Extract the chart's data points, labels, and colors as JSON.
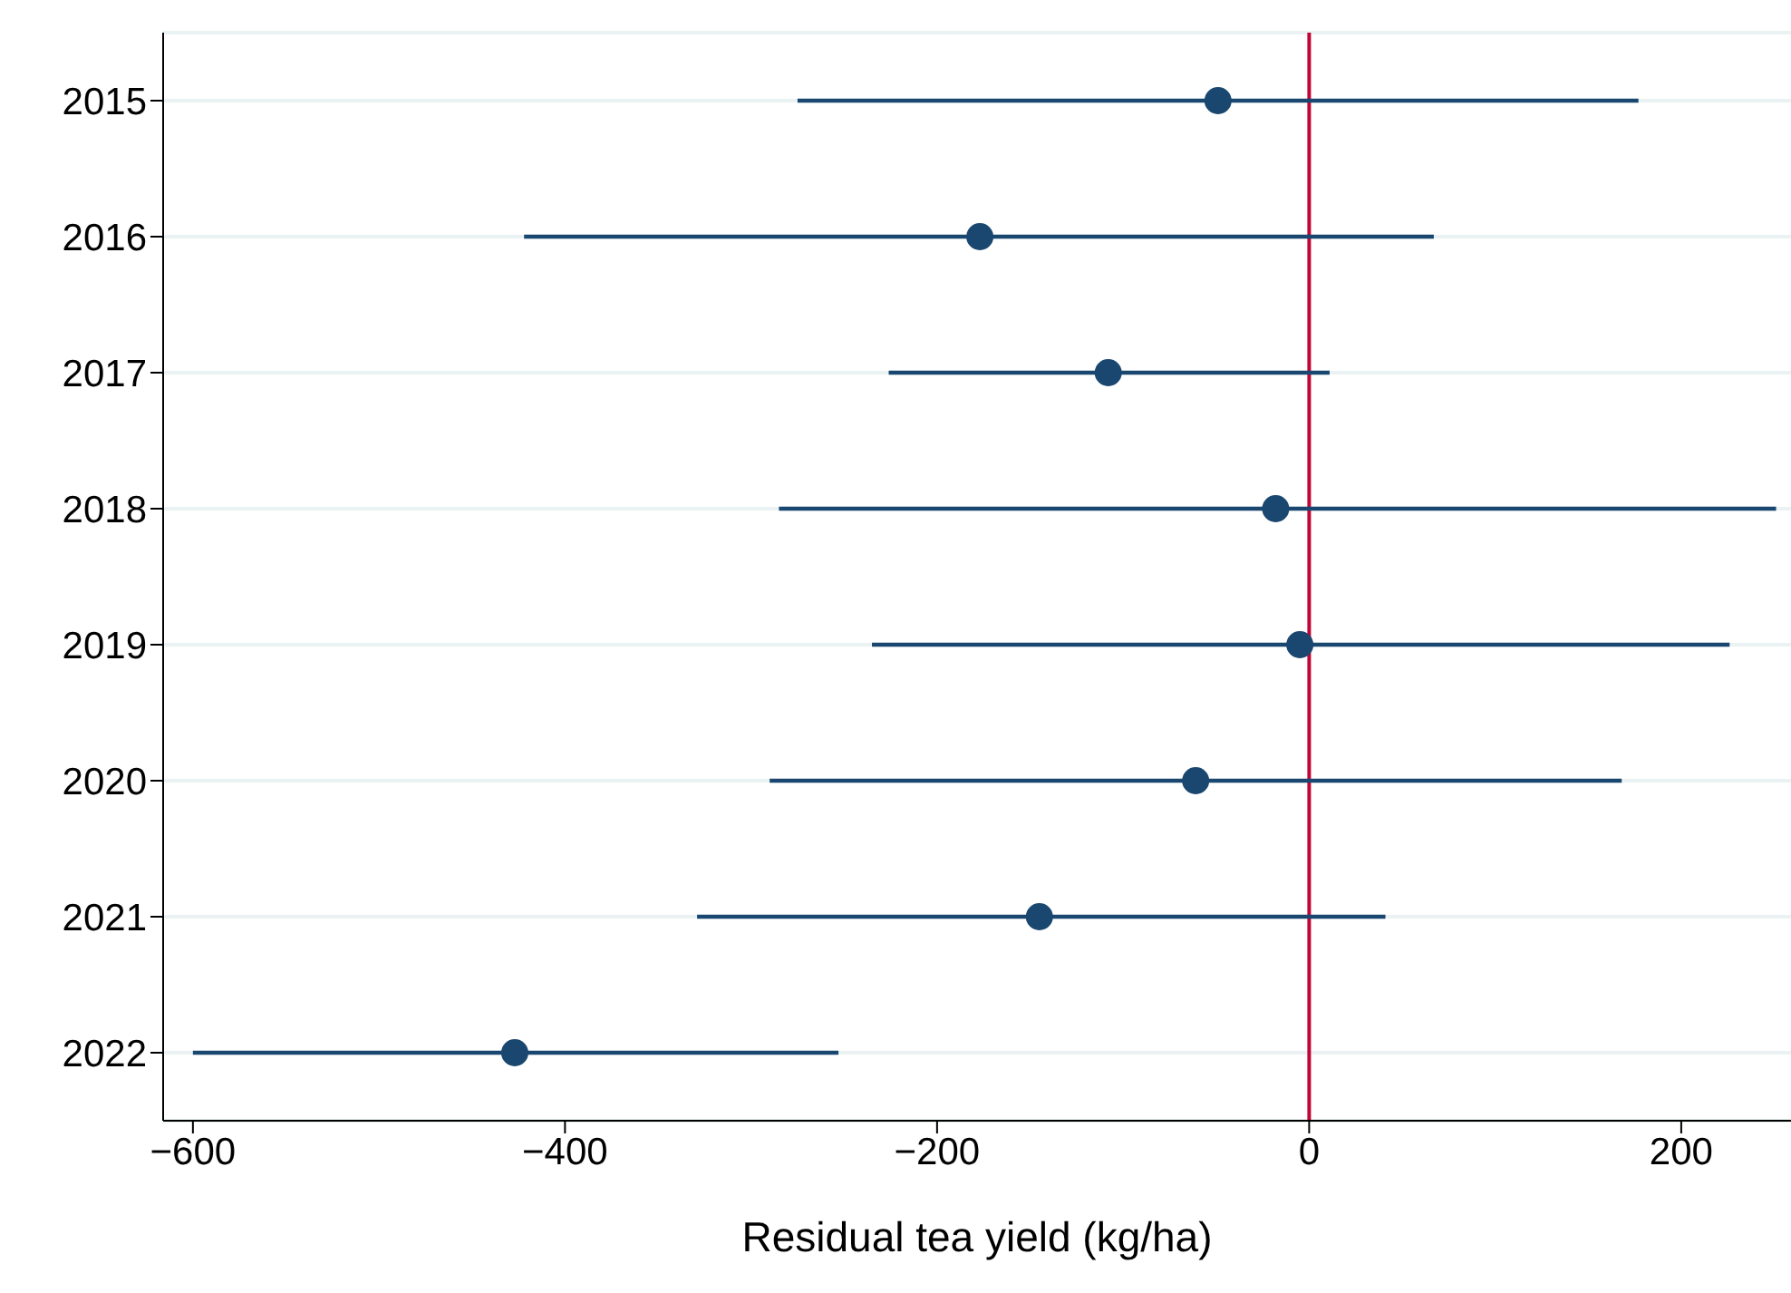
{
  "chart_data": {
    "type": "scatter",
    "orientation": "horizontal",
    "xlabel": "Residual tea yield (kg/ha)",
    "categories": [
      "2015",
      "2016",
      "2017",
      "2018",
      "2019",
      "2020",
      "2021",
      "2022"
    ],
    "values": [
      -49,
      -177,
      -108,
      -18,
      -5,
      -61,
      -145,
      -427
    ],
    "errors": [
      [
        -275,
        177
      ],
      [
        -422,
        67
      ],
      [
        -226,
        11
      ],
      [
        -285,
        251
      ],
      [
        -235,
        226
      ],
      [
        -290,
        168
      ],
      [
        -329,
        41
      ],
      [
        -600,
        -253
      ]
    ],
    "color": "#1a476f",
    "marker": "circle",
    "grid": "y",
    "xlim": [
      -616,
      259
    ],
    "xticks": [
      {
        "value": -600,
        "label": "−600"
      },
      {
        "value": -400,
        "label": "−400"
      },
      {
        "value": -200,
        "label": "−200"
      },
      0,
      200
    ],
    "ref_lines": [
      {
        "axis": "x",
        "value": 0,
        "color": "#c10534"
      }
    ]
  }
}
